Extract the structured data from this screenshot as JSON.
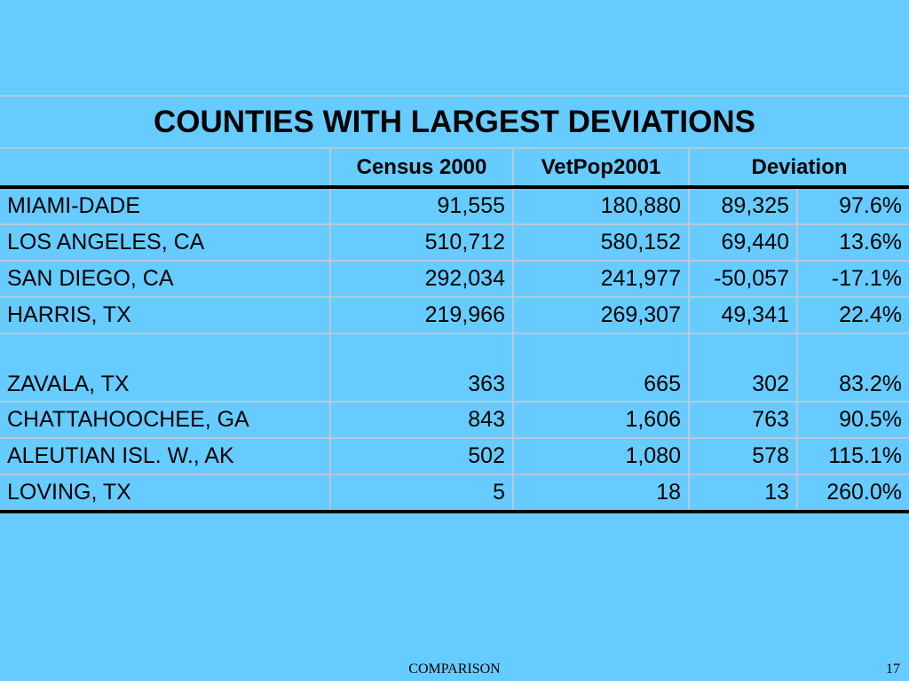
{
  "table": {
    "title": "COUNTIES WITH LARGEST DEVIATIONS",
    "headers": [
      "Census 2000",
      "VetPop2001",
      "Deviation"
    ],
    "rows": [
      [
        "MIAMI-DADE",
        "91,555",
        "180,880",
        "89,325",
        "97.6%"
      ],
      [
        "LOS ANGELES, CA",
        "510,712",
        "580,152",
        "69,440",
        "13.6%"
      ],
      [
        "SAN DIEGO, CA",
        "292,034",
        "241,977",
        "-50,057",
        "-17.1%"
      ],
      [
        "HARRIS, TX",
        "219,966",
        "269,307",
        "49,341",
        "22.4%"
      ],
      [
        "ZAVALA, TX",
        "363",
        "665",
        "302",
        "83.2%"
      ],
      [
        "CHATTAHOOCHEE, GA",
        "843",
        "1,606",
        "763",
        "90.5%"
      ],
      [
        "ALEUTIAN ISL. W., AK",
        "502",
        "1,080",
        "578",
        "115.1%"
      ],
      [
        "LOVING, TX",
        "5",
        "18",
        "13",
        "260.0%"
      ]
    ]
  },
  "footer": {
    "label": "COMPARISON",
    "page": "17"
  }
}
